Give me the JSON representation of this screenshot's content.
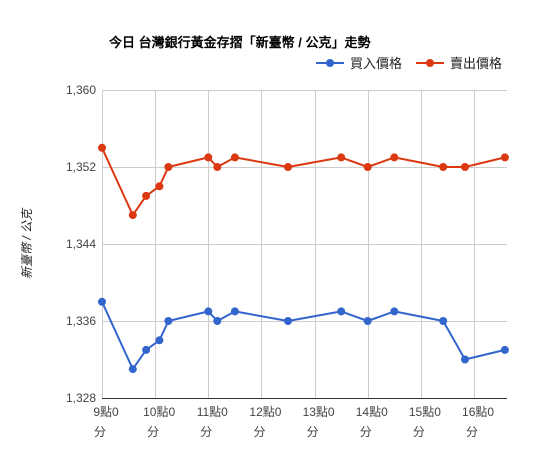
{
  "chart_data": {
    "type": "line",
    "title": "今日 台灣銀行黃金存摺「新臺幣 / 公克」走勢",
    "xlabel": "",
    "ylabel": "新臺幣 / 公克",
    "ylim": [
      1328,
      1360
    ],
    "y_ticks": [
      "1,360",
      "1,352",
      "1,344",
      "1,336",
      "1,328"
    ],
    "y_tick_values": [
      1360,
      1352,
      1344,
      1336,
      1328
    ],
    "x_range_hours": [
      9.0,
      16.62
    ],
    "x_ticks": [
      {
        "hour": 9,
        "line1": "9點0",
        "line2": "分"
      },
      {
        "hour": 10,
        "line1": "10點0",
        "line2": "分"
      },
      {
        "hour": 11,
        "line1": "11點0",
        "line2": "分"
      },
      {
        "hour": 12,
        "line1": "12點0",
        "line2": "分"
      },
      {
        "hour": 13,
        "line1": "13點0",
        "line2": "分"
      },
      {
        "hour": 14,
        "line1": "14點0",
        "line2": "分"
      },
      {
        "hour": 15,
        "line1": "15點0",
        "line2": "分"
      },
      {
        "hour": 16,
        "line1": "16點0",
        "line2": "分"
      }
    ],
    "grid": true,
    "legend_position": "top-right",
    "series": [
      {
        "name": "買入價格",
        "color": "#3366cc",
        "points": [
          [
            9.0,
            1338
          ],
          [
            9.58,
            1331
          ],
          [
            9.83,
            1333
          ],
          [
            10.08,
            1334
          ],
          [
            10.25,
            1336
          ],
          [
            11.0,
            1337
          ],
          [
            11.17,
            1336
          ],
          [
            11.5,
            1337
          ],
          [
            12.5,
            1336
          ],
          [
            13.5,
            1337
          ],
          [
            14.0,
            1336
          ],
          [
            14.5,
            1337
          ],
          [
            15.42,
            1336
          ],
          [
            15.83,
            1332
          ],
          [
            16.58,
            1333
          ]
        ]
      },
      {
        "name": "賣出價格",
        "color": "#dc3912",
        "points": [
          [
            9.0,
            1354
          ],
          [
            9.58,
            1347
          ],
          [
            9.83,
            1349
          ],
          [
            10.08,
            1350
          ],
          [
            10.25,
            1352
          ],
          [
            11.0,
            1353
          ],
          [
            11.17,
            1352
          ],
          [
            11.5,
            1353
          ],
          [
            12.5,
            1352
          ],
          [
            13.5,
            1353
          ],
          [
            14.0,
            1352
          ],
          [
            14.5,
            1353
          ],
          [
            15.42,
            1352
          ],
          [
            15.83,
            1352
          ],
          [
            16.58,
            1353
          ]
        ]
      }
    ]
  }
}
